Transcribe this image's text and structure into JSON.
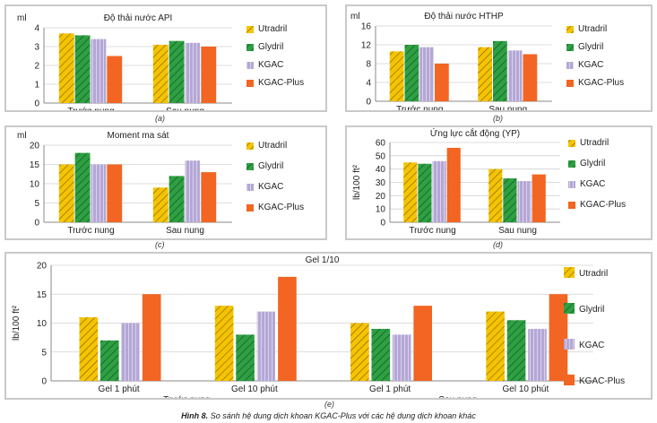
{
  "colors": {
    "Utradril": "#f5c400",
    "Glydril": "#2ea043",
    "KGAC": "#b4a7d6",
    "KGAC-Plus": "#f26522"
  },
  "caption": {
    "label": "Hình 8.",
    "text": " So sánh hệ dung dịch khoan KGAC-Plus với các hệ dung dịch khoan khác"
  },
  "chart_data": [
    {
      "id": "a",
      "sublabel": "(a)",
      "type": "bar",
      "title": "Độ thải nước API",
      "unit": "ml",
      "ylabel": "",
      "ylim": [
        0,
        4
      ],
      "yticks": [
        0,
        1,
        2,
        3,
        4
      ],
      "categories": [
        "Trước nung",
        "Sau nung"
      ],
      "series": [
        {
          "name": "Utradril",
          "values": [
            3.7,
            3.1
          ]
        },
        {
          "name": "Glydril",
          "values": [
            3.6,
            3.3
          ]
        },
        {
          "name": "KGAC",
          "values": [
            3.4,
            3.2
          ]
        },
        {
          "name": "KGAC-Plus",
          "values": [
            2.5,
            3.0
          ]
        }
      ]
    },
    {
      "id": "b",
      "sublabel": "(b)",
      "type": "bar",
      "title": "Độ thải nước HTHP",
      "unit": "ml",
      "ylabel": "",
      "ylim": [
        0,
        16
      ],
      "yticks": [
        0,
        4,
        8,
        12,
        16
      ],
      "categories": [
        "Trước nung",
        "Sau nung"
      ],
      "series": [
        {
          "name": "Utradril",
          "values": [
            10.6,
            11.5
          ]
        },
        {
          "name": "Glydril",
          "values": [
            12.0,
            12.8
          ]
        },
        {
          "name": "KGAC",
          "values": [
            11.5,
            10.8
          ]
        },
        {
          "name": "KGAC-Plus",
          "values": [
            8.0,
            10.0
          ]
        }
      ]
    },
    {
      "id": "c",
      "sublabel": "(c)",
      "type": "bar",
      "title": "Moment ma sát",
      "unit": "ml",
      "ylabel": "",
      "ylim": [
        0,
        20
      ],
      "yticks": [
        0,
        5,
        10,
        15,
        20
      ],
      "categories": [
        "Trước nung",
        "Sau nung"
      ],
      "series": [
        {
          "name": "Utradril",
          "values": [
            15,
            9
          ]
        },
        {
          "name": "Glydril",
          "values": [
            18,
            12
          ]
        },
        {
          "name": "KGAC",
          "values": [
            15,
            16
          ]
        },
        {
          "name": "KGAC-Plus",
          "values": [
            15,
            13
          ]
        }
      ]
    },
    {
      "id": "d",
      "sublabel": "(d)",
      "type": "bar",
      "title": "Ứng lực cắt động (YP)",
      "unit": "",
      "ylabel": "lb/100 ft²",
      "ylim": [
        0,
        60
      ],
      "yticks": [
        0,
        10,
        20,
        30,
        40,
        50,
        60
      ],
      "categories": [
        "Trước nung",
        "Sau nung"
      ],
      "series": [
        {
          "name": "Utradril",
          "values": [
            45,
            40
          ]
        },
        {
          "name": "Glydril",
          "values": [
            44,
            33
          ]
        },
        {
          "name": "KGAC",
          "values": [
            46,
            31
          ]
        },
        {
          "name": "KGAC-Plus",
          "values": [
            56,
            36
          ]
        }
      ]
    },
    {
      "id": "e",
      "sublabel": "(e)",
      "type": "bar",
      "title": "Gel 1/10",
      "unit": "",
      "ylabel": "lb/100 ft²",
      "ylim": [
        0,
        20
      ],
      "yticks": [
        0,
        5,
        10,
        15,
        20
      ],
      "categories": [
        "Gel 1 phút",
        "Gel 10 phút",
        "Gel 1 phút",
        "Gel 10 phút"
      ],
      "groups": [
        "Trước nung",
        "Sau nung"
      ],
      "series": [
        {
          "name": "Utradril",
          "values": [
            11,
            13,
            10,
            12
          ]
        },
        {
          "name": "Glydril",
          "values": [
            7,
            8,
            9,
            10.5
          ]
        },
        {
          "name": "KGAC",
          "values": [
            10,
            12,
            8,
            9
          ]
        },
        {
          "name": "KGAC-Plus",
          "values": [
            15,
            18,
            13,
            15
          ]
        }
      ]
    }
  ]
}
